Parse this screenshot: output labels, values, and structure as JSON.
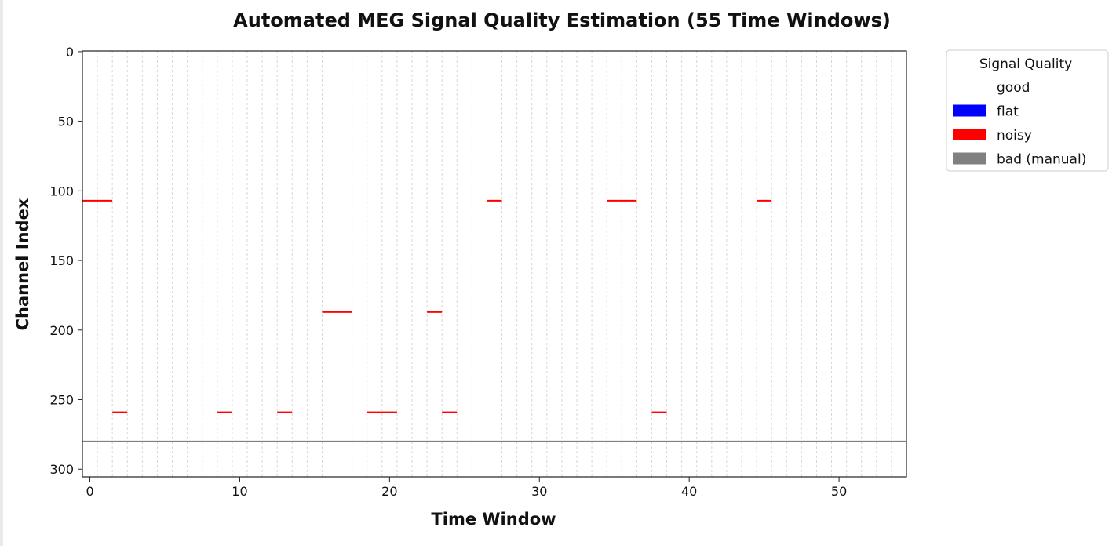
{
  "chart_data": {
    "type": "heatmap",
    "title": "Automated MEG Signal Quality Estimation (55 Time Windows)",
    "xlabel": "Time Window",
    "ylabel": "Channel Index",
    "xlim": [
      -0.5,
      54.5
    ],
    "ylim": [
      305.5,
      -0.5
    ],
    "x_ticks": [
      0,
      10,
      20,
      30,
      40,
      50
    ],
    "y_ticks": [
      0,
      50,
      100,
      150,
      200,
      250,
      300
    ],
    "n_windows": 55,
    "grid": "vertical",
    "legend": {
      "title": "Signal Quality",
      "placement": "outside-top-right",
      "entries": [
        {
          "label": "good",
          "color": "#ffffff"
        },
        {
          "label": "flat",
          "color": "#0000ff"
        },
        {
          "label": "noisy",
          "color": "#ff0000"
        },
        {
          "label": "bad (manual)",
          "color": "#808080"
        }
      ]
    },
    "noisy_segments": [
      {
        "channel": 107,
        "start": 0,
        "end": 1
      },
      {
        "channel": 107,
        "start": 27,
        "end": 27
      },
      {
        "channel": 107,
        "start": 35,
        "end": 36
      },
      {
        "channel": 107,
        "start": 45,
        "end": 45
      },
      {
        "channel": 187,
        "start": 16,
        "end": 17
      },
      {
        "channel": 187,
        "start": 23,
        "end": 23
      },
      {
        "channel": 259,
        "start": 2,
        "end": 2
      },
      {
        "channel": 259,
        "start": 9,
        "end": 9
      },
      {
        "channel": 259,
        "start": 13,
        "end": 13
      },
      {
        "channel": 259,
        "start": 19,
        "end": 20
      },
      {
        "channel": 259,
        "start": 24,
        "end": 24
      },
      {
        "channel": 259,
        "start": 38,
        "end": 38
      }
    ],
    "bad_manual_channels": [
      280
    ]
  }
}
